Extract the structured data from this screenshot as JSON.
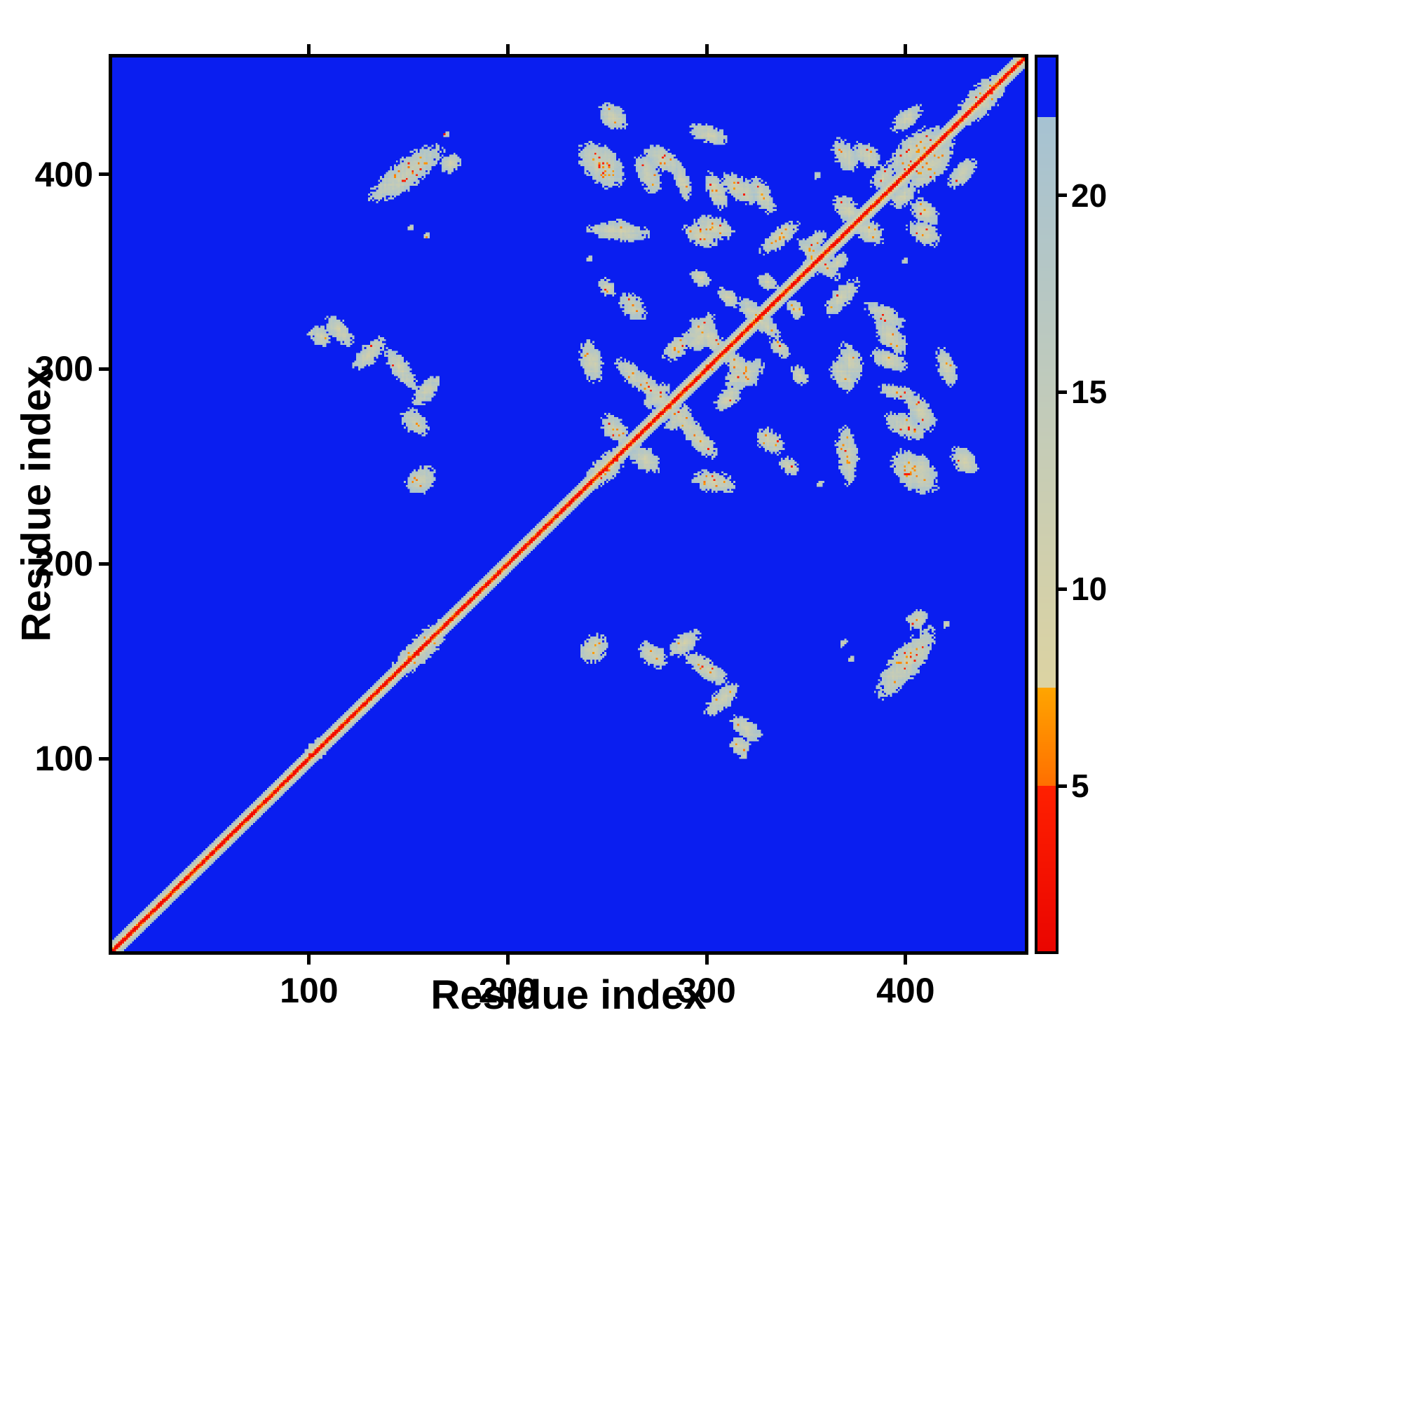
{
  "chart_data": {
    "type": "heatmap",
    "title": "",
    "xlabel": "Residue index",
    "ylabel": "Residue index",
    "x_range": [
      1,
      460
    ],
    "y_range": [
      1,
      460
    ],
    "x_ticks": [
      100,
      200,
      300,
      400
    ],
    "y_ticks": [
      100,
      200,
      300,
      400
    ],
    "grid": false,
    "legend_position": "colorbar-right",
    "background_color": "#ffffff",
    "frame_color": "#000000",
    "colorbar": {
      "vmin": 0.8,
      "vmax": 23.5,
      "ticks": [
        5,
        10,
        15,
        20
      ],
      "stops": [
        {
          "from": 0,
          "upto": 5,
          "color_lo": "#e60000",
          "color_hi": "#ff2000"
        },
        {
          "from": 5,
          "upto": 7.5,
          "color_lo": "#ff6f00",
          "color_hi": "#ffa500"
        },
        {
          "from": 7.5,
          "upto": 22,
          "color_lo": "#dcd3a2",
          "color_hi": "#a6c2d2"
        },
        {
          "from": 22,
          "upto": 99,
          "color_lo": "#0a1ef0",
          "color_hi": "#0a1ef0"
        }
      ]
    },
    "matrix": {
      "size": 460,
      "background_value": 30,
      "diagonal": {
        "slope": 4.0,
        "noise": 1.5,
        "halfwidth": 7
      },
      "bulges": [
        [
          103,
          10,
          5
        ],
        [
          155,
          22,
          7
        ],
        [
          248,
          14,
          7
        ],
        [
          300,
          6,
          4
        ],
        [
          352,
          8,
          5
        ],
        [
          403,
          12,
          7
        ],
        [
          438,
          18,
          8
        ]
      ],
      "blobs": [
        [
          148,
          400,
          24,
          8,
          38,
          0.5
        ],
        [
          170,
          405,
          6,
          5,
          40,
          0.3
        ],
        [
          105,
          316,
          6,
          5,
          -50,
          0.2
        ],
        [
          114,
          319,
          10,
          5,
          -50,
          0.25
        ],
        [
          129,
          307,
          12,
          5,
          48,
          0.3
        ],
        [
          145,
          299,
          14,
          5,
          -55,
          0.3
        ],
        [
          158,
          288,
          10,
          5,
          50,
          0.25
        ],
        [
          152,
          272,
          9,
          6,
          -45,
          0.3
        ],
        [
          155,
          242,
          9,
          7,
          42,
          0.5
        ],
        [
          247,
          404,
          13,
          9,
          -50,
          0.6
        ],
        [
          270,
          399,
          12,
          6,
          -62,
          0.4
        ],
        [
          287,
          396,
          11,
          4,
          -75,
          0.3
        ],
        [
          304,
          391,
          11,
          5,
          -68,
          0.4
        ],
        [
          327,
          389,
          12,
          5,
          -62,
          0.4
        ],
        [
          255,
          370,
          17,
          5,
          -4,
          0.3
        ],
        [
          296,
          368,
          10,
          6,
          -28,
          0.4
        ],
        [
          336,
          367,
          13,
          5,
          42,
          0.5
        ],
        [
          356,
          355,
          15,
          4,
          -45,
          0.6
        ],
        [
          365,
          354,
          7,
          4,
          40,
          0.3
        ],
        [
          370,
          381,
          10,
          6,
          -52,
          0.4
        ],
        [
          369,
          409,
          10,
          6,
          -60,
          0.4
        ],
        [
          404,
          412,
          18,
          8,
          40,
          0.5
        ],
        [
          388,
          398,
          8,
          5,
          45,
          0.3
        ],
        [
          409,
          380,
          9,
          6,
          -45,
          0.35
        ],
        [
          400,
          428,
          10,
          5,
          42,
          0.35
        ],
        [
          372,
          303,
          11,
          6,
          -70,
          0.4
        ],
        [
          392,
          316,
          12,
          6,
          -50,
          0.4
        ],
        [
          407,
          277,
          12,
          6,
          -55,
          0.5
        ],
        [
          404,
          246,
          15,
          9,
          -42,
          0.6
        ],
        [
          370,
          257,
          9,
          6,
          -60,
          0.3
        ],
        [
          420,
          300,
          11,
          5,
          -72,
          0.3
        ],
        [
          429,
          252,
          9,
          6,
          -50,
          0.3
        ],
        [
          241,
          303,
          12,
          6,
          -78,
          0.4
        ],
        [
          253,
          268,
          10,
          6,
          -50,
          0.5
        ],
        [
          262,
          296,
          12,
          5,
          -45,
          0.5
        ],
        [
          262,
          331,
          9,
          6,
          -52,
          0.4
        ],
        [
          249,
          341,
          6,
          4,
          -45,
          0.3
        ],
        [
          272,
          288,
          18,
          5,
          -45,
          0.5
        ],
        [
          296,
          320,
          11,
          5,
          45,
          0.4
        ],
        [
          300,
          316,
          13,
          5,
          -45,
          0.5
        ],
        [
          310,
          284,
          9,
          5,
          45,
          0.35
        ],
        [
          315,
          296,
          9,
          5,
          45,
          0.3
        ],
        [
          323,
          328,
          11,
          5,
          -45,
          0.4
        ],
        [
          330,
          344,
          6,
          4,
          -30,
          0.3
        ],
        [
          285,
          274,
          9,
          5,
          45,
          0.3
        ],
        [
          310,
          336,
          7,
          4,
          -45,
          0.3
        ],
        [
          296,
          346,
          6,
          4,
          -40,
          0.3
        ]
      ],
      "dots": [
        [
          150,
          372
        ],
        [
          158,
          368
        ],
        [
          168,
          420
        ],
        [
          100,
          318
        ],
        [
          240,
          356
        ],
        [
          355,
          399
        ]
      ]
    }
  }
}
